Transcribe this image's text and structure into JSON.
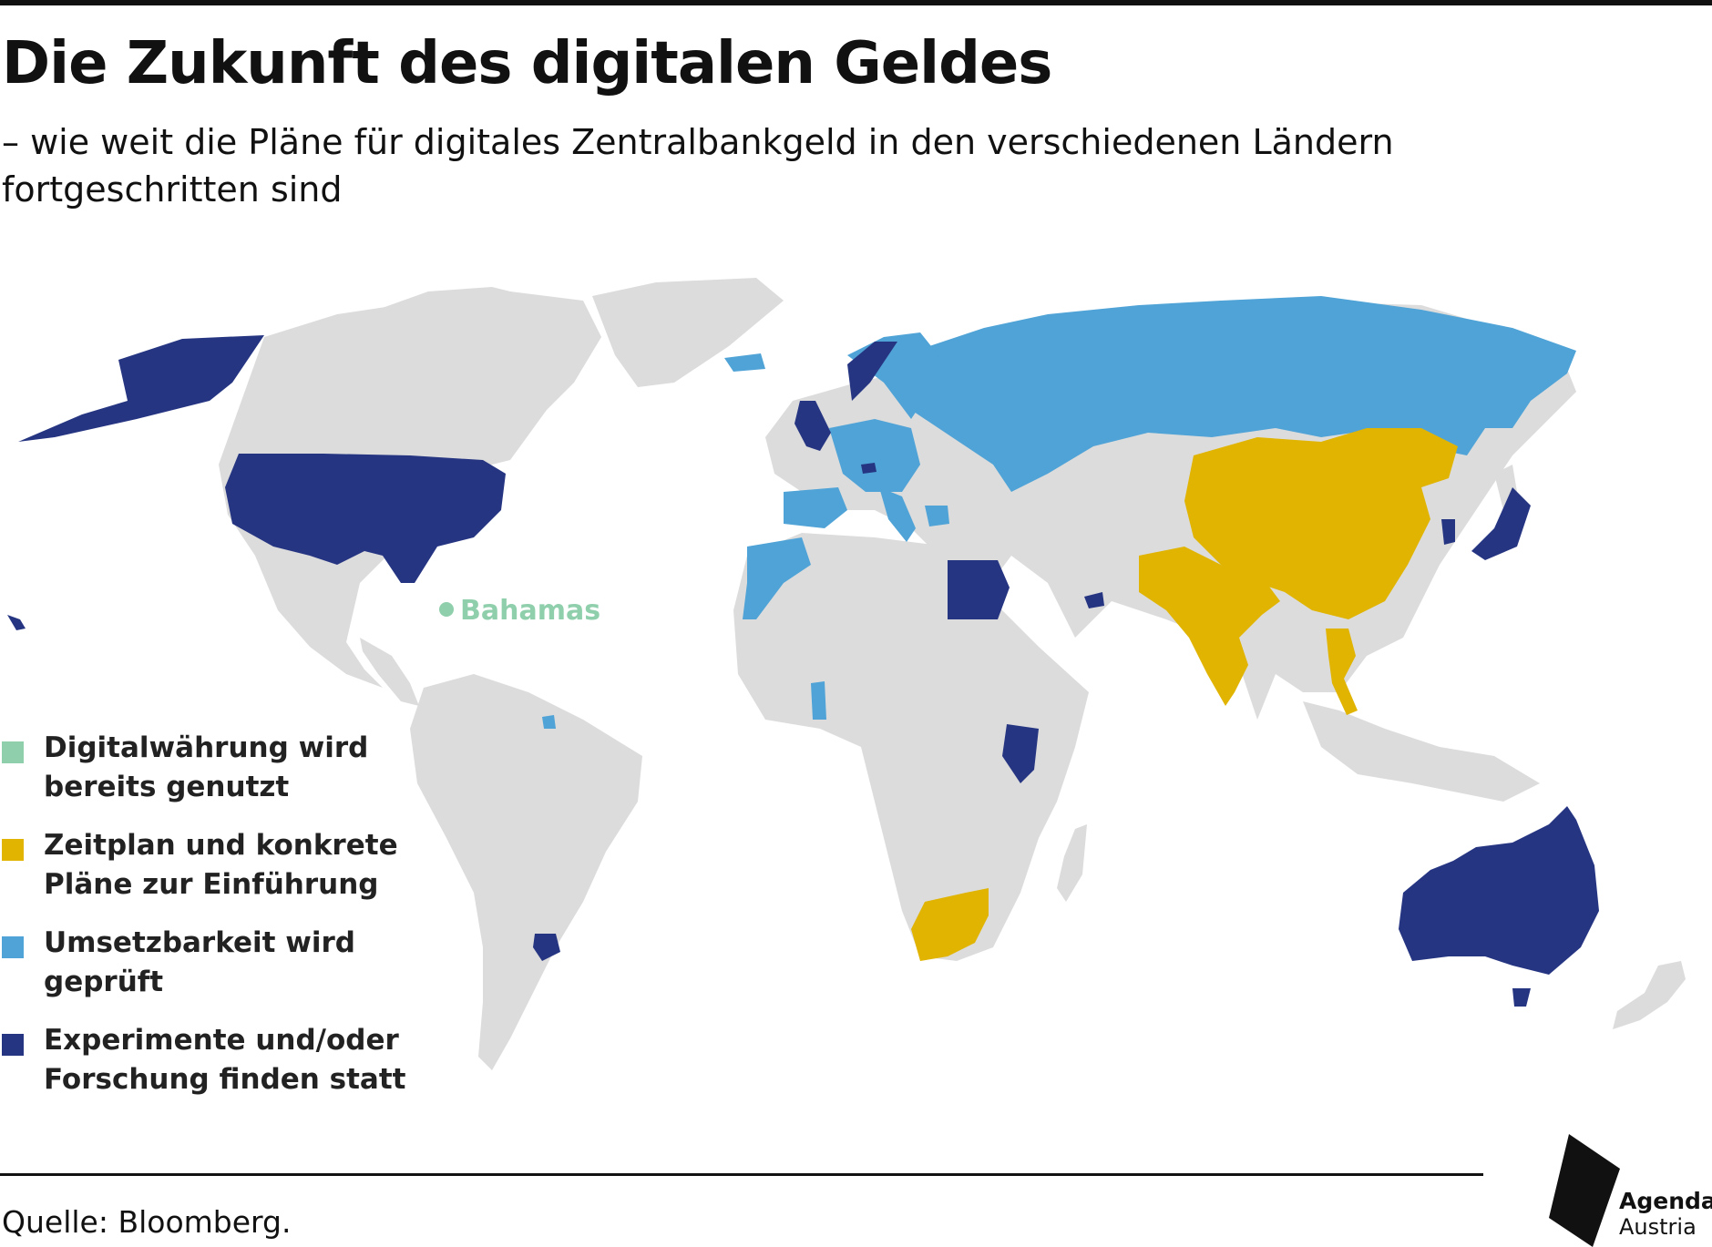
{
  "header": {
    "title": "Die Zukunft des digitalen Geldes",
    "subtitle": "– wie weit die Pläne für digitales Zentralbankgeld in den verschiedenen Ländern fortgeschritten sind"
  },
  "colors": {
    "land": "#dcdcdc",
    "in_use": "#8fcfac",
    "timeline": "#e0b400",
    "feasibility": "#4fa3d6",
    "research": "#263582",
    "text": "#111111"
  },
  "map": {
    "callout_label": "Bahamas"
  },
  "legend": {
    "items": [
      {
        "label": "Digitalwährung wird bereits genutzt",
        "color": "#8fcfac"
      },
      {
        "label": "Zeitplan und konkrete Pläne zur Einführung",
        "color": "#e0b400"
      },
      {
        "label": "Umsetzbarkeit wird geprüft",
        "color": "#4fa3d6"
      },
      {
        "label": "Experimente und/oder Forschung finden statt",
        "color": "#263582"
      }
    ]
  },
  "footer": {
    "source": "Quelle: Bloomberg.",
    "brand_name": "Agenda",
    "brand_sub": "Austria"
  }
}
